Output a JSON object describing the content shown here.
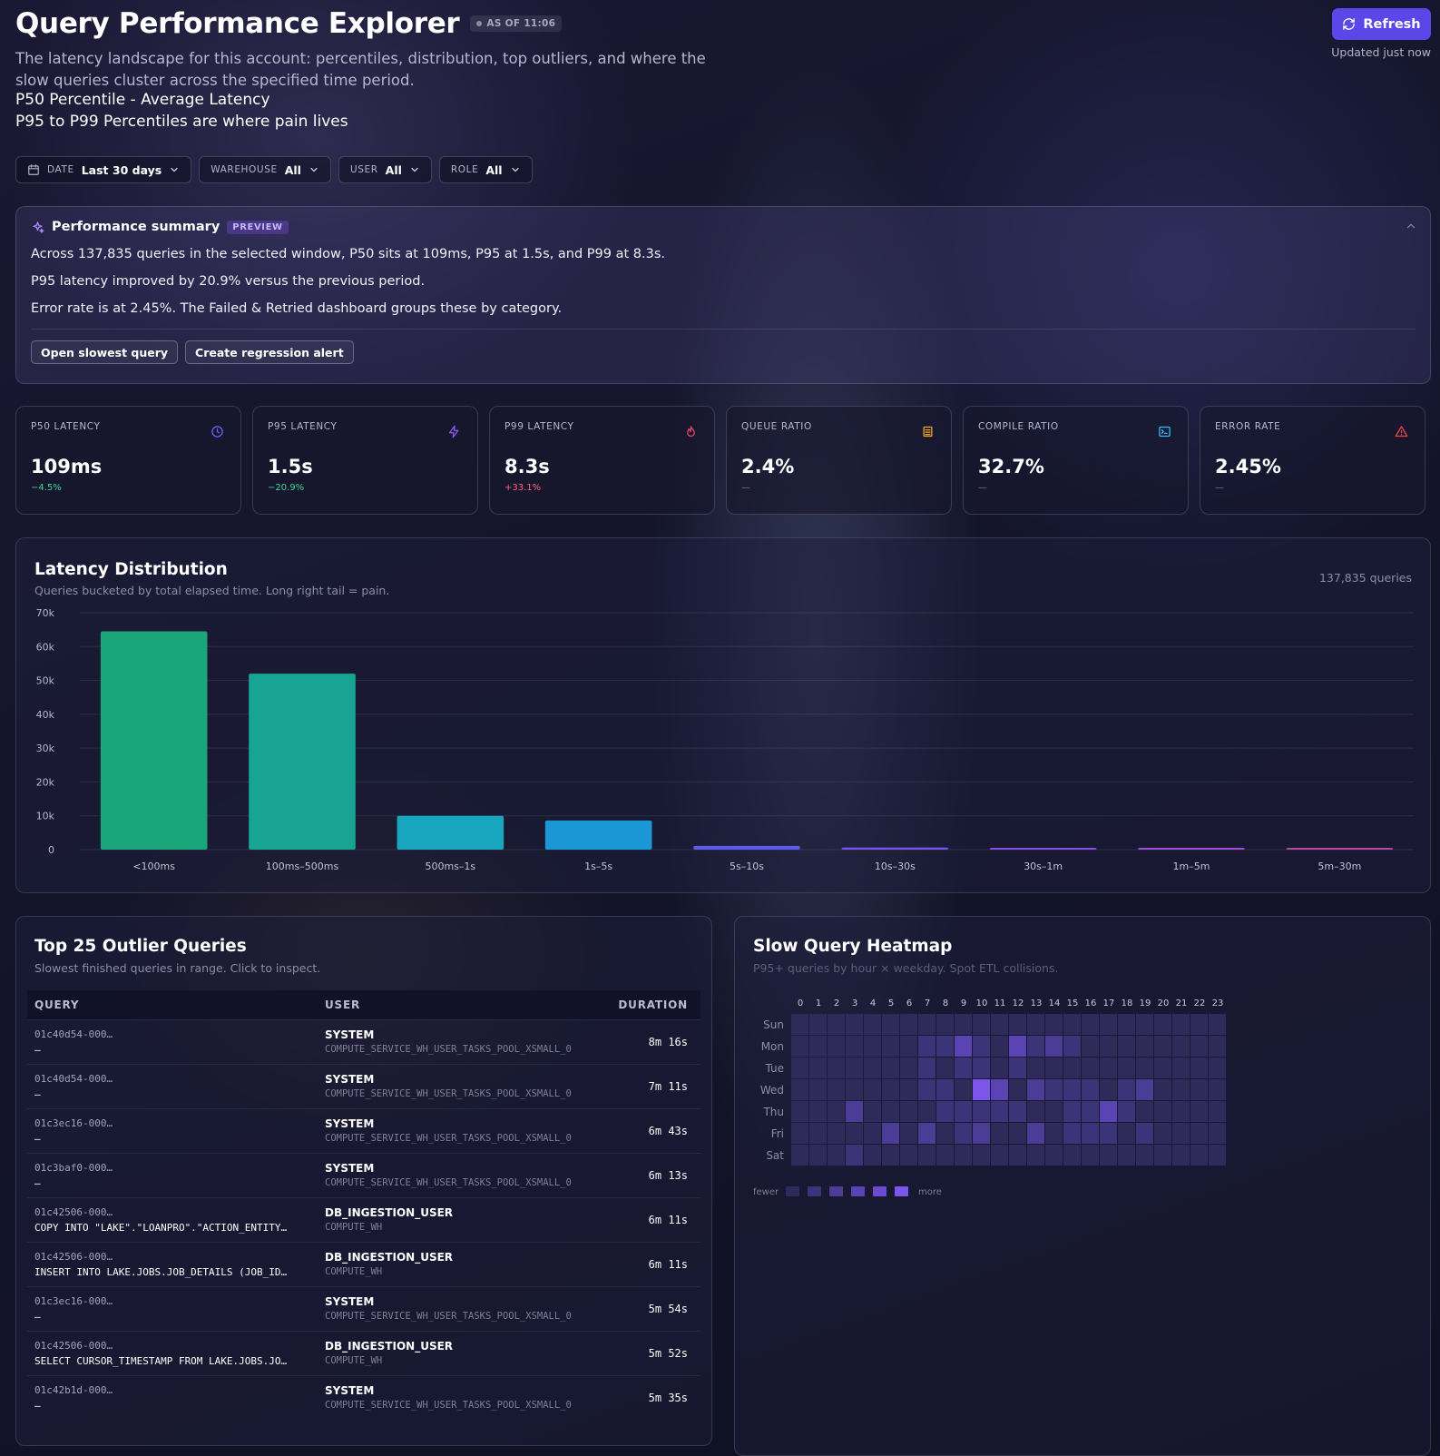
{
  "header": {
    "title": "Query Performance Explorer",
    "as_of": "AS OF 11:06",
    "subtitle": "The latency landscape for this account: percentiles, distribution, top outliers, and where the slow queries cluster across the specified time period.",
    "note1": "P50 Percentile - Average Latency",
    "note2": "P95 to P99 Percentiles are where pain lives",
    "refresh_label": "Refresh",
    "updated": "Updated just now"
  },
  "filters": [
    {
      "label": "DATE",
      "value": "Last 30 days"
    },
    {
      "label": "WAREHOUSE",
      "value": "All"
    },
    {
      "label": "USER",
      "value": "All"
    },
    {
      "label": "ROLE",
      "value": "All"
    }
  ],
  "summary": {
    "title": "Performance summary",
    "badge": "PREVIEW",
    "lines": [
      "Across 137,835 queries in the selected window, P50 sits at 109ms, P95 at 1.5s, and P99 at 8.3s.",
      "P95 latency improved by 20.9% versus the previous period.",
      "Error rate is at 2.45%. The Failed & Retried dashboard groups these by category."
    ],
    "actions": [
      "Open slowest query",
      "Create regression alert"
    ]
  },
  "kpis": [
    {
      "label": "P50 LATENCY",
      "value": "109ms",
      "delta": "−4.5%",
      "trend": "down",
      "icon": "clock-icon",
      "color": "#6c63ff"
    },
    {
      "label": "P95 LATENCY",
      "value": "1.5s",
      "delta": "−20.9%",
      "trend": "down",
      "icon": "bolt-icon",
      "color": "#8b5cf6"
    },
    {
      "label": "P99 LATENCY",
      "value": "8.3s",
      "delta": "+33.1%",
      "trend": "up",
      "icon": "flame-icon",
      "color": "#ef4460"
    },
    {
      "label": "QUEUE RATIO",
      "value": "2.4%",
      "delta": "—",
      "trend": "flat",
      "icon": "layers-icon",
      "color": "#f5a524"
    },
    {
      "label": "COMPILE RATIO",
      "value": "32.7%",
      "delta": "—",
      "trend": "flat",
      "icon": "terminal-icon",
      "color": "#38bdf8"
    },
    {
      "label": "ERROR RATE",
      "value": "2.45%",
      "delta": "—",
      "trend": "flat",
      "icon": "alert-triangle-icon",
      "color": "#ef4444"
    }
  ],
  "latency_panel": {
    "title": "Latency Distribution",
    "subtitle": "Queries bucketed by total elapsed time. Long right tail = pain.",
    "count": "137,835 queries"
  },
  "chart_data": {
    "type": "bar",
    "categories": [
      "<100ms",
      "100ms–500ms",
      "500ms–1s",
      "1s–5s",
      "5s–10s",
      "10s–30s",
      "30s–1m",
      "1m–5m",
      "5m–30m"
    ],
    "values": [
      64500,
      52000,
      10000,
      8600,
      1100,
      650,
      250,
      150,
      100
    ],
    "colors": [
      "#1aa57a",
      "#17a493",
      "#17a6bd",
      "#1c97d6",
      "#5c5ae8",
      "#7653e6",
      "#8a4fe0",
      "#a04ad6",
      "#b64a9a"
    ],
    "ylim": [
      0,
      70000
    ],
    "yticks": [
      "0",
      "10k",
      "20k",
      "30k",
      "40k",
      "50k",
      "60k",
      "70k"
    ]
  },
  "outliers": {
    "title": "Top 25 Outlier Queries",
    "subtitle": "Slowest finished queries in range. Click to inspect.",
    "columns": [
      "QUERY",
      "USER",
      "DURATION"
    ],
    "rows": [
      {
        "id": "01c40d54-000…",
        "text": "—",
        "user": "SYSTEM",
        "warehouse": "COMPUTE_SERVICE_WH_USER_TASKS_POOL_XSMALL_0",
        "duration": "8m 16s"
      },
      {
        "id": "01c40d54-000…",
        "text": "—",
        "user": "SYSTEM",
        "warehouse": "COMPUTE_SERVICE_WH_USER_TASKS_POOL_XSMALL_0",
        "duration": "7m 11s"
      },
      {
        "id": "01c3ec16-000…",
        "text": "—",
        "user": "SYSTEM",
        "warehouse": "COMPUTE_SERVICE_WH_USER_TASKS_POOL_XSMALL_0",
        "duration": "6m 43s"
      },
      {
        "id": "01c3baf0-000…",
        "text": "—",
        "user": "SYSTEM",
        "warehouse": "COMPUTE_SERVICE_WH_USER_TASKS_POOL_XSMALL_0",
        "duration": "6m 13s"
      },
      {
        "id": "01c42506-000…",
        "text": "COPY INTO \"LAKE\".\"LOANPRO\".\"ACTION_ENTITY…",
        "user": "DB_INGESTION_USER",
        "warehouse": "COMPUTE_WH",
        "duration": "6m 11s"
      },
      {
        "id": "01c42506-000…",
        "text": "INSERT INTO LAKE.JOBS.JOB_DETAILS (JOB_ID…",
        "user": "DB_INGESTION_USER",
        "warehouse": "COMPUTE_WH",
        "duration": "6m 11s"
      },
      {
        "id": "01c3ec16-000…",
        "text": "—",
        "user": "SYSTEM",
        "warehouse": "COMPUTE_SERVICE_WH_USER_TASKS_POOL_XSMALL_0",
        "duration": "5m 54s"
      },
      {
        "id": "01c42506-000…",
        "text": "SELECT CURSOR_TIMESTAMP FROM LAKE.JOBS.JO…",
        "user": "DB_INGESTION_USER",
        "warehouse": "COMPUTE_WH",
        "duration": "5m 52s"
      },
      {
        "id": "01c42b1d-000…",
        "text": "—",
        "user": "SYSTEM",
        "warehouse": "COMPUTE_SERVICE_WH_USER_TASKS_POOL_XSMALL_0",
        "duration": "5m 35s"
      }
    ]
  },
  "heatmap": {
    "title": "Slow Query Heatmap",
    "subtitle": "P95+ queries by hour × weekday. Spot ETL collisions.",
    "hours": [
      "0",
      "1",
      "2",
      "3",
      "4",
      "5",
      "6",
      "7",
      "8",
      "9",
      "10",
      "11",
      "12",
      "13",
      "14",
      "15",
      "16",
      "17",
      "18",
      "19",
      "20",
      "21",
      "22",
      "23"
    ],
    "days": [
      "Sun",
      "Mon",
      "Tue",
      "Wed",
      "Thu",
      "Fri",
      "Sat"
    ],
    "legend_low": "fewer",
    "legend_high": "more",
    "levels": [
      [
        0,
        0,
        0,
        0,
        0,
        0,
        0,
        0,
        0,
        0,
        0,
        0,
        0,
        0,
        0,
        0,
        0,
        0,
        0,
        0,
        0,
        0,
        0,
        0
      ],
      [
        0,
        0,
        0,
        0,
        0,
        0,
        0,
        1,
        1,
        3,
        1,
        0,
        3,
        1,
        2,
        1,
        0,
        0,
        0,
        0,
        0,
        0,
        0,
        0
      ],
      [
        0,
        0,
        0,
        0,
        0,
        0,
        0,
        1,
        0,
        1,
        1,
        0,
        1,
        0,
        0,
        0,
        0,
        0,
        0,
        0,
        0,
        0,
        0,
        0
      ],
      [
        0,
        0,
        0,
        0,
        0,
        0,
        0,
        1,
        1,
        0,
        5,
        3,
        0,
        2,
        1,
        1,
        1,
        0,
        1,
        2,
        0,
        0,
        0,
        0
      ],
      [
        0,
        0,
        0,
        2,
        0,
        0,
        0,
        0,
        1,
        1,
        1,
        1,
        1,
        0,
        0,
        1,
        1,
        3,
        1,
        0,
        0,
        0,
        0,
        0
      ],
      [
        0,
        0,
        0,
        0,
        0,
        2,
        0,
        2,
        0,
        1,
        2,
        0,
        0,
        2,
        0,
        1,
        1,
        1,
        0,
        1,
        0,
        0,
        0,
        0
      ],
      [
        0,
        0,
        0,
        1,
        0,
        0,
        0,
        0,
        0,
        0,
        0,
        0,
        0,
        0,
        0,
        0,
        0,
        0,
        0,
        0,
        0,
        0,
        0,
        0
      ]
    ],
    "palette": [
      "#2e2a5a",
      "#3c3478",
      "#4b3d96",
      "#5a44b4",
      "#6a4bd0",
      "#7c55ea"
    ]
  }
}
